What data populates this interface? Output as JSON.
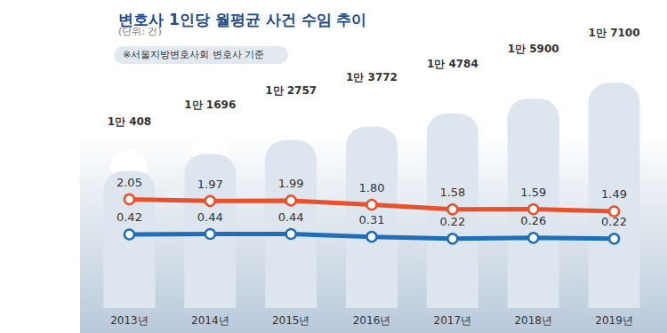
{
  "chart_data": {
    "type": "bar",
    "title": "변호사 1인당 월평균 사건 수임 추이",
    "subtitle": "(단위: 건)",
    "annotations": [
      "※서울지방변호사회 변호사 기준"
    ],
    "categories": [
      "2013년",
      "2014년",
      "2015년",
      "2016년",
      "2017년",
      "2018년",
      "2019년"
    ],
    "series": [
      {
        "type": "bar",
        "color": "#dde6ef",
        "values": [
          10408,
          11696,
          12757,
          13772,
          14784,
          15900,
          17100
        ],
        "value_labels": [
          "1만 408",
          "1만 1696",
          "1만 2757",
          "1만 3772",
          "1만 4784",
          "1만 5900",
          "1만 7100"
        ]
      },
      {
        "type": "line",
        "axis": "y2",
        "color": "#e8512a",
        "marker": "circle",
        "values": [
          2.05,
          1.97,
          1.99,
          1.8,
          1.58,
          1.59,
          1.49
        ],
        "value_labels": [
          "2.05",
          "1.97",
          "1.99",
          "1.80",
          "1.58",
          "1.59",
          "1.49"
        ]
      },
      {
        "type": "line",
        "axis": "y2",
        "color": "#1f6fb6",
        "marker": "circle",
        "values": [
          0.42,
          0.44,
          0.44,
          0.31,
          0.22,
          0.26,
          0.22
        ],
        "value_labels": [
          "0.42",
          "0.44",
          "0.44",
          "0.31",
          "0.22",
          "0.26",
          "0.22"
        ]
      }
    ],
    "ylim": [
      0,
      18000
    ],
    "yticks": [
      0,
      18000
    ],
    "y2lim": [
      -3,
      8
    ],
    "y2ticks": [
      -3,
      8
    ],
    "data_labels": true,
    "tick_labels": "x",
    "grid": false
  }
}
